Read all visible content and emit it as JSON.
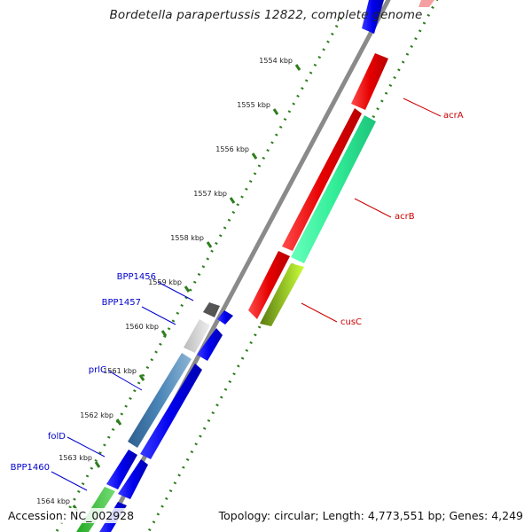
{
  "title": "Bordetella parapertussis 12822, complete genome",
  "footer": {
    "accession": "Accession: NC_002928",
    "topology": "Topology: circular; Length: 4,773,551 bp; Genes: 4,249"
  },
  "scale_labels": [
    "1554 kbp",
    "1555 kbp",
    "1556 kbp",
    "1557 kbp",
    "1558 kbp",
    "1559 kbp",
    "1560 kbp",
    "1561 kbp",
    "1562 kbp",
    "1563 kbp",
    "1564 kbp"
  ],
  "gene_labels": [
    {
      "name": "acrA",
      "color": "#cc0000"
    },
    {
      "name": "acrB",
      "color": "#cc0000"
    },
    {
      "name": "cusC",
      "color": "#cc0000"
    },
    {
      "name": "BPP1456",
      "color": "#0000cc"
    },
    {
      "name": "BPP1457",
      "color": "#0000cc"
    },
    {
      "name": "prlC",
      "color": "#0000cc"
    },
    {
      "name": "folD",
      "color": "#0000cc"
    },
    {
      "name": "BPP1460",
      "color": "#0000cc"
    }
  ],
  "colors": {
    "backbone": "#888888",
    "tick_green": "#2e7d1e",
    "red_gene": "#e60000",
    "blue_gene": "#0000ee",
    "teal_gene": "#33ee99"
  }
}
